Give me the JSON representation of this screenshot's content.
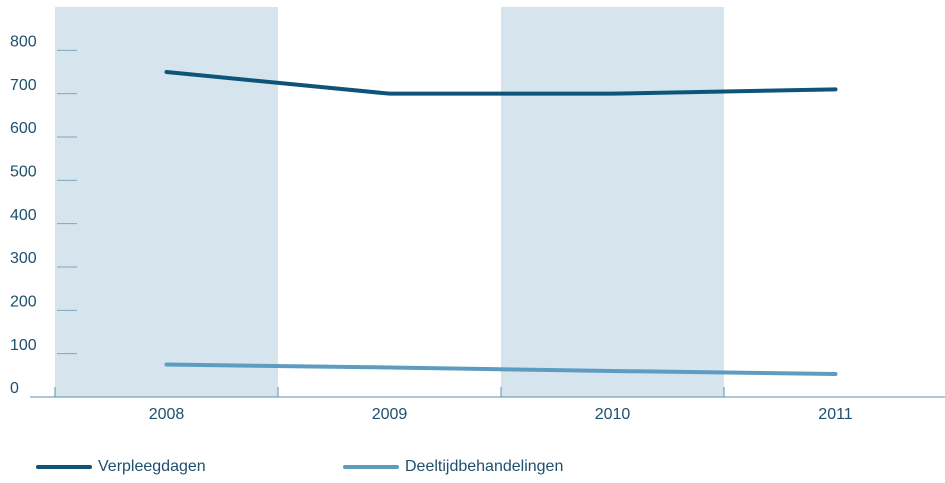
{
  "chart_data": {
    "type": "line",
    "categories": [
      "2008",
      "2009",
      "2010",
      "2011"
    ],
    "series": [
      {
        "name": "Verpleegdagen",
        "color": "#0d5478",
        "values": [
          750,
          700,
          700,
          710
        ]
      },
      {
        "name": "Deeltijdbehandelingen",
        "color": "#5d9cc0",
        "values": [
          75,
          68,
          60,
          53
        ]
      }
    ],
    "ylim": [
      0,
      900
    ],
    "yticks": [
      0,
      100,
      200,
      300,
      400,
      500,
      600,
      700,
      800
    ],
    "band_color": "#d6e4ee",
    "legend": "bottom"
  }
}
